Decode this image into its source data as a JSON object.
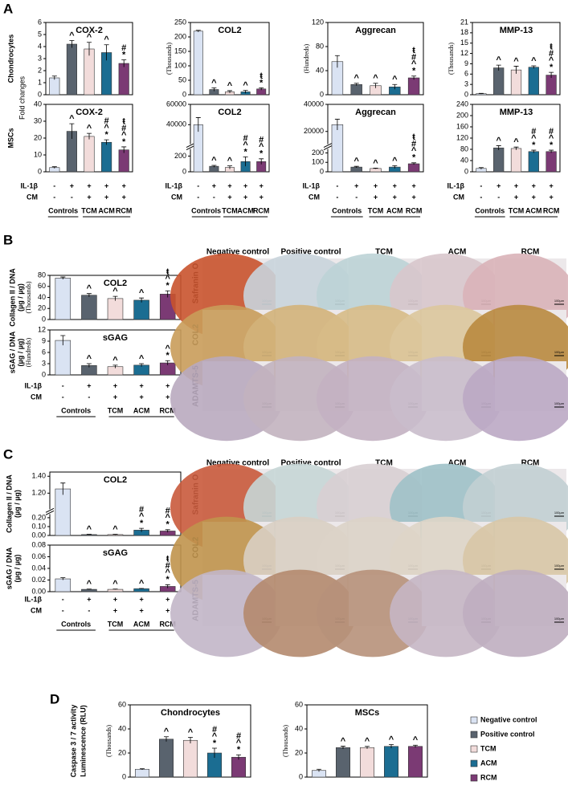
{
  "panel_labels": [
    "A",
    "B",
    "C",
    "D"
  ],
  "row_labels": [
    "Chondrocytes",
    "MSCs"
  ],
  "fold_label": "Fold changes",
  "treatments": {
    "rows": [
      {
        "label": "IL-1β",
        "signs": [
          "-",
          "+",
          "+",
          "+",
          "+"
        ]
      },
      {
        "label": "CM",
        "signs": [
          "-",
          "-",
          "+",
          "+",
          "+"
        ]
      }
    ],
    "groups": [
      "Controls",
      "TCM",
      "ACM",
      "RCM"
    ]
  },
  "legend": [
    {
      "name": "Negative control",
      "color": "#dae3f3"
    },
    {
      "name": "Positive control",
      "color": "#59636e"
    },
    {
      "name": "TCM",
      "color": "#f2dcdb"
    },
    {
      "name": "ACM",
      "color": "#1b6d92"
    },
    {
      "name": "RCM",
      "color": "#7b3a74"
    }
  ],
  "histology": {
    "columns": [
      "Negative control",
      "Positive control",
      "TCM",
      "ACM",
      "RCM"
    ],
    "rows": [
      "Safranin O",
      "COL2",
      "ADAMTS-5"
    ],
    "scale_bar": "100µm"
  },
  "chart_data": [
    {
      "type": "bar",
      "title": "COX-2",
      "values": [
        1.4,
        4.2,
        3.8,
        3.5,
        2.6
      ],
      "errors": [
        0.15,
        0.3,
        0.55,
        0.65,
        0.3
      ],
      "marks": [
        [],
        [
          "^"
        ],
        [
          "^"
        ],
        [
          "^"
        ],
        [
          "#",
          "*"
        ]
      ],
      "ylim": [
        0,
        6
      ],
      "yticks": [
        0,
        1,
        2,
        3,
        4,
        5,
        6
      ]
    },
    {
      "type": "bar",
      "title": "COL2",
      "unit": "(Thousands)",
      "values": [
        220,
        18,
        10,
        10,
        20
      ],
      "errors": [
        3,
        6,
        4,
        5,
        4
      ],
      "marks": [
        [],
        [
          "^"
        ],
        [
          "^"
        ],
        [
          "^"
        ],
        [
          "ŧ",
          "*"
        ]
      ],
      "ylim": [
        0,
        250
      ],
      "yticks": [
        0,
        50,
        100,
        150,
        200,
        250
      ]
    },
    {
      "type": "bar",
      "title": "Aggrecan",
      "unit": "(Hundreds)",
      "values": [
        55,
        17,
        15,
        13,
        28
      ],
      "errors": [
        10,
        2,
        4,
        4,
        3
      ],
      "marks": [
        [],
        [
          "^"
        ],
        [
          "^"
        ],
        [
          "^"
        ],
        [
          "ŧ",
          "#",
          "^",
          "*"
        ]
      ],
      "ylim": [
        0,
        120
      ],
      "yticks": [
        0,
        40,
        80,
        120
      ]
    },
    {
      "type": "bar",
      "title": "MMP-13",
      "unit": "(Thousands)",
      "values": [
        0.3,
        7.8,
        7.2,
        8.0,
        5.7
      ],
      "errors": [
        0.1,
        0.8,
        1.1,
        0.4,
        0.8
      ],
      "marks": [
        [],
        [
          "^"
        ],
        [
          "^"
        ],
        [
          "^"
        ],
        [
          "ŧ",
          "#",
          "^",
          "*"
        ]
      ],
      "ylim": [
        0,
        21
      ],
      "yticks": [
        0,
        3,
        6,
        9,
        12,
        15,
        18,
        21
      ]
    },
    {
      "type": "bar",
      "title": "COX-2",
      "values": [
        2.5,
        24,
        21,
        17.5,
        13
      ],
      "errors": [
        0.5,
        4.5,
        1.8,
        1.5,
        1.8
      ],
      "marks": [
        [],
        [
          "^"
        ],
        [
          "^"
        ],
        [
          "#",
          "^",
          "*"
        ],
        [
          "ŧ",
          "#",
          "^",
          "*"
        ]
      ],
      "ylim": [
        0,
        40
      ],
      "yticks": [
        0,
        10,
        20,
        30,
        40
      ]
    },
    {
      "type": "bar",
      "title": "COL2",
      "values": [
        40000,
        70,
        55,
        130,
        130
      ],
      "errors": [
        7000,
        12,
        20,
        60,
        35
      ],
      "marks": [
        [],
        [
          "^"
        ],
        [
          "^"
        ],
        [
          "#",
          "^",
          "*"
        ],
        [
          "#",
          "^",
          "*"
        ]
      ],
      "ylim": [
        0,
        60000
      ],
      "ybreak": [
        300,
        20000
      ],
      "yticks": [
        0,
        200,
        40000,
        60000
      ]
    },
    {
      "type": "bar",
      "title": "Aggrecan",
      "values": [
        25000,
        50,
        35,
        50,
        85
      ],
      "errors": [
        4000,
        8,
        4,
        15,
        10
      ],
      "marks": [
        [],
        [
          "^"
        ],
        [
          "^"
        ],
        [
          "^"
        ],
        [
          "ŧ",
          "#",
          "^",
          "*"
        ]
      ],
      "ylim": [
        0,
        40000
      ],
      "ybreak": [
        250,
        10000
      ],
      "yticks": [
        0,
        100,
        200,
        20000,
        40000
      ]
    },
    {
      "type": "bar",
      "title": "MMP-13",
      "values": [
        12,
        85,
        83,
        72,
        72
      ],
      "errors": [
        3,
        8,
        5,
        5,
        5
      ],
      "marks": [
        [],
        [
          "^"
        ],
        [
          "^"
        ],
        [
          "#",
          "^",
          "*"
        ],
        [
          "#",
          "^",
          "*"
        ]
      ],
      "ylim": [
        0,
        240
      ],
      "yticks": [
        0,
        40,
        80,
        120,
        160,
        200,
        240
      ]
    },
    {
      "type": "bar",
      "title": "COL2",
      "unit": "(Thousands)",
      "ylabel": [
        "Collagen II / DNA",
        "(µg / µg)"
      ],
      "values": [
        75,
        44,
        38,
        35,
        46
      ],
      "errors": [
        2,
        3,
        4,
        4,
        6
      ],
      "marks": [
        [],
        [
          "^"
        ],
        [
          "^"
        ],
        [
          "^"
        ],
        [
          "ŧ",
          "^",
          "*"
        ]
      ],
      "ylim": [
        0,
        80
      ],
      "yticks": [
        0,
        20,
        40,
        60,
        80
      ]
    },
    {
      "type": "bar",
      "title": "sGAG",
      "unit": "(Hundreds)",
      "ylabel": [
        "sGAG / DNA",
        "(µg / µg)"
      ],
      "values": [
        9.2,
        2.5,
        2.2,
        2.6,
        3.2
      ],
      "errors": [
        1.3,
        0.5,
        0.4,
        0.4,
        0.6
      ],
      "marks": [
        [],
        [
          "^"
        ],
        [
          "^"
        ],
        [
          "^"
        ],
        [
          "^",
          "*"
        ]
      ],
      "ylim": [
        0,
        12
      ],
      "yticks": [
        0,
        3,
        6,
        9,
        12
      ]
    },
    {
      "type": "bar",
      "title": "COL2",
      "ylabel": [
        "Collagen II / DNA",
        "(µg / µg)"
      ],
      "values": [
        1.25,
        0.01,
        0.01,
        0.06,
        0.05
      ],
      "errors": [
        0.07,
        0.003,
        0.003,
        0.02,
        0.015
      ],
      "marks": [
        [],
        [
          "^"
        ],
        [
          "^"
        ],
        [
          "#",
          "^",
          "*"
        ],
        [
          "#",
          "^",
          "*"
        ]
      ],
      "ylim": [
        0,
        1.45
      ],
      "ybreak": [
        0.25,
        1.0
      ],
      "yticks": [
        {
          "value": 0,
          "label": "0.00"
        },
        {
          "value": 0.1,
          "label": "0.10"
        },
        {
          "value": 0.2,
          "label": "0.20"
        },
        {
          "value": 1.2,
          "label": "1.20"
        },
        {
          "value": 1.4,
          "label": "1.40"
        }
      ]
    },
    {
      "type": "bar",
      "title": "sGAG",
      "ylabel": [
        "sGAG / DNA",
        "(µg / µg)"
      ],
      "values": [
        0.022,
        0.004,
        0.004,
        0.005,
        0.009
      ],
      "errors": [
        0.002,
        0.0005,
        0.0005,
        0.0005,
        0.003
      ],
      "marks": [
        [],
        [
          "^"
        ],
        [
          "^"
        ],
        [
          "^"
        ],
        [
          "ŧ",
          "#",
          "^",
          "*"
        ]
      ],
      "ylim": [
        0,
        0.08
      ],
      "yticks": [
        {
          "value": 0,
          "label": "0.00"
        },
        {
          "value": 0.02,
          "label": "0.02"
        },
        {
          "value": 0.04,
          "label": "0.04"
        },
        {
          "value": 0.06,
          "label": "0.06"
        },
        {
          "value": 0.08,
          "label": "0.08"
        }
      ]
    },
    {
      "type": "bar",
      "title": "Chondrocytes",
      "unit": "(Thousands)",
      "ylabel": [
        "Caspase 3 / 7 activity",
        "Luminescence (RLU)"
      ],
      "values": [
        6.5,
        31.5,
        30.5,
        20,
        16.5
      ],
      "errors": [
        0.5,
        2,
        2.5,
        4,
        2
      ],
      "marks": [
        [],
        [
          "^"
        ],
        [
          "^"
        ],
        [
          "#",
          "^",
          "*"
        ],
        [
          "#",
          "^",
          "*"
        ]
      ],
      "ylim": [
        0,
        60
      ],
      "yticks": [
        0,
        20,
        40,
        60
      ]
    },
    {
      "type": "bar",
      "title": "MSCs",
      "unit": "(Thousands)",
      "values": [
        5.5,
        24.5,
        24.5,
        25.5,
        25.5
      ],
      "errors": [
        1,
        1.2,
        1,
        1.5,
        1
      ],
      "marks": [
        [],
        [
          "^"
        ],
        [
          "^"
        ],
        [
          "^"
        ],
        [
          "^"
        ]
      ],
      "ylim": [
        0,
        60
      ],
      "yticks": [
        0,
        20,
        40,
        60
      ]
    }
  ]
}
